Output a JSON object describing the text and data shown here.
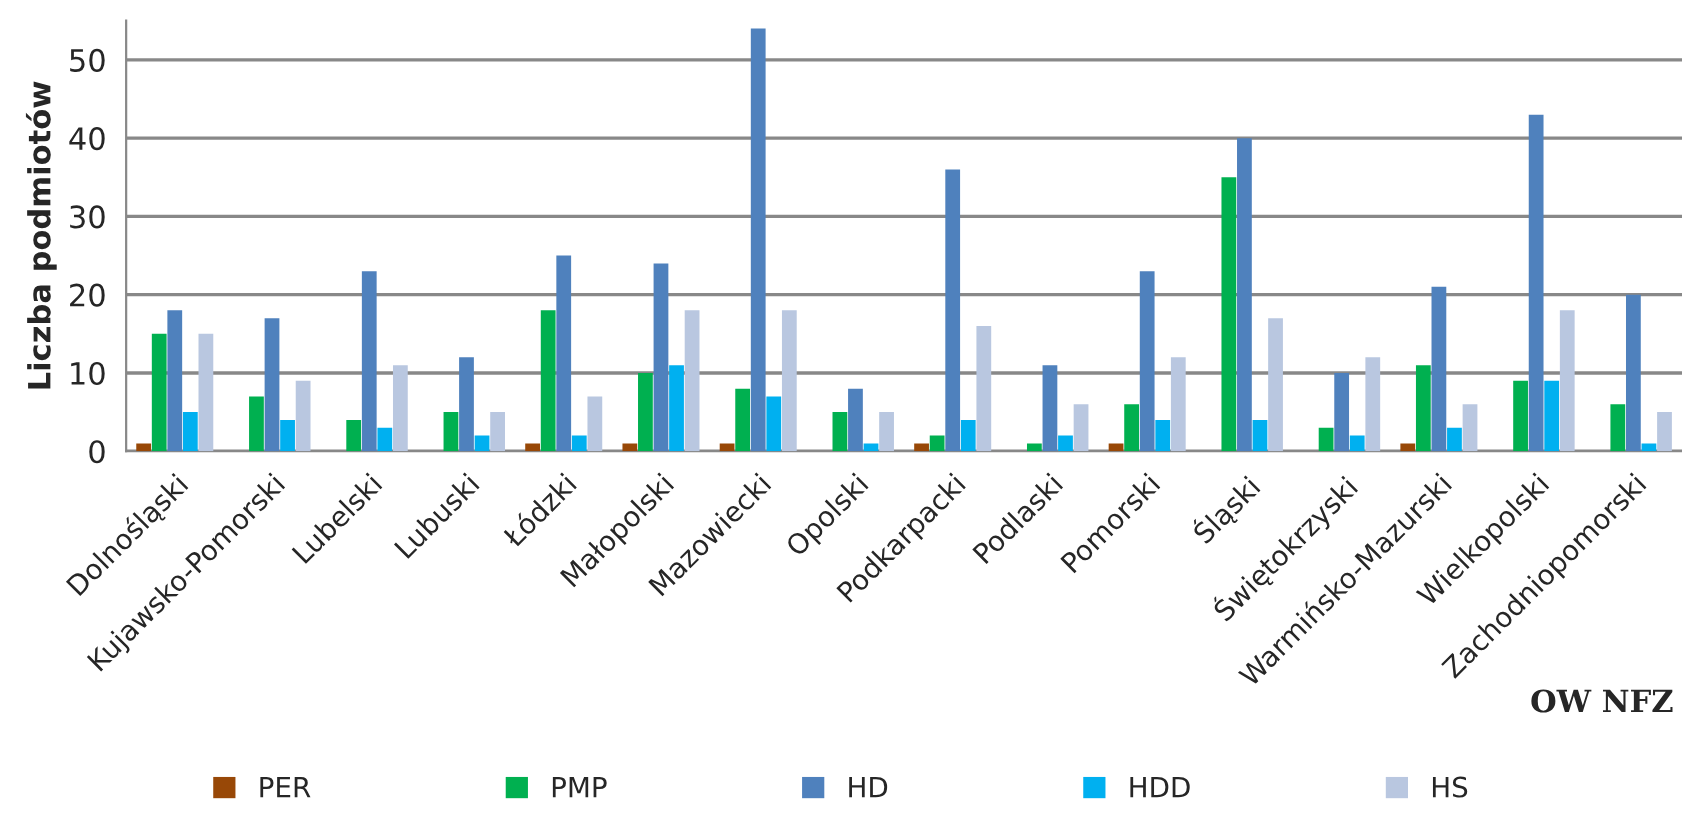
{
  "chart_data": {
    "type": "bar",
    "ylabel": "Liczba podmiotów",
    "xlabel": "OW NFZ",
    "categories": [
      "Dolnośląski",
      "Kujawsko-Pomorski",
      "Lubelski",
      "Lubuski",
      "Łódzki",
      "Małopolski",
      "Mazowiecki",
      "Opolski",
      "Podkarpacki",
      "Podlaski",
      "Pomorski",
      "Śląski",
      "Świętokrzyski",
      "Warmińsko-Mazurski",
      "Wielkopolski",
      "Zachodniopomorski"
    ],
    "series": [
      {
        "name": "PER",
        "color": "#984807",
        "values": [
          1,
          0,
          0,
          0,
          1,
          1,
          1,
          0,
          1,
          0,
          1,
          0,
          0,
          1,
          0,
          0
        ]
      },
      {
        "name": "PMP",
        "color": "#00b050",
        "values": [
          15,
          7,
          4,
          5,
          18,
          10,
          8,
          5,
          2,
          1,
          6,
          35,
          3,
          11,
          9,
          6
        ]
      },
      {
        "name": "HD",
        "color": "#4f81bd",
        "values": [
          18,
          17,
          23,
          12,
          25,
          24,
          54,
          8,
          36,
          11,
          23,
          40,
          10,
          21,
          43,
          20
        ]
      },
      {
        "name": "HDD",
        "color": "#00b0f0",
        "values": [
          5,
          4,
          3,
          2,
          2,
          11,
          7,
          1,
          4,
          2,
          4,
          4,
          2,
          3,
          9,
          1
        ]
      },
      {
        "name": "HS",
        "color": "#b9c7e0",
        "values": [
          15,
          9,
          11,
          5,
          7,
          18,
          18,
          5,
          16,
          6,
          12,
          17,
          12,
          6,
          18,
          5
        ]
      }
    ],
    "ylim": [
      0,
      55
    ],
    "yticks": [
      0,
      10,
      20,
      30,
      40,
      50
    ],
    "grid": "y",
    "legend": "bottom"
  }
}
